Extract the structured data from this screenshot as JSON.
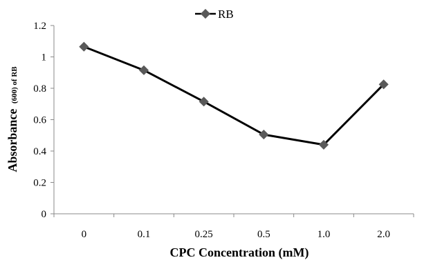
{
  "chart_data": {
    "type": "line",
    "title": "",
    "categories": [
      "0",
      "0.1",
      "0.25",
      "0.5",
      "1.0",
      "2.0"
    ],
    "series": [
      {
        "name": "RB",
        "values": [
          1.065,
          0.915,
          0.715,
          0.505,
          0.44,
          0.825
        ],
        "color": "#000000",
        "marker_color": "#595959"
      }
    ],
    "xlabel": "CPC Concentration (mM)",
    "ylabel": "Absorbance",
    "ylabel_subscript": "(600) of RB",
    "ylim": [
      0,
      1.2
    ],
    "yticks": [
      "0",
      "0.2",
      "0.4",
      "0.6",
      "0.8",
      "1",
      "1.2"
    ],
    "grid": false,
    "legend_position": "top-center"
  }
}
